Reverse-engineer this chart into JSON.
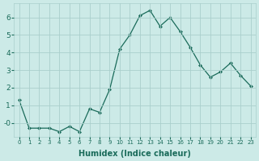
{
  "title": "",
  "xlabel": "Humidex (Indice chaleur)",
  "x": [
    0,
    1,
    2,
    3,
    4,
    5,
    6,
    7,
    8,
    9,
    10,
    11,
    12,
    13,
    14,
    15,
    16,
    17,
    18,
    19,
    20,
    21,
    22,
    23
  ],
  "y": [
    1.3,
    -0.3,
    -0.3,
    -0.3,
    -0.5,
    -0.2,
    -0.5,
    0.8,
    0.6,
    1.9,
    4.2,
    5.0,
    6.1,
    6.4,
    5.5,
    6.0,
    5.2,
    4.3,
    3.3,
    2.6,
    2.9,
    3.4,
    2.7,
    2.1
  ],
  "line_color": "#1a6b5a",
  "marker": "D",
  "marker_size": 2.0,
  "bg_color": "#cceae7",
  "grid_color": "#aacfcc",
  "tick_label_color": "#1a6b5a",
  "xlabel_color": "#1a6b5a",
  "ylim": [
    -0.8,
    6.8
  ],
  "xlim": [
    -0.5,
    23.5
  ],
  "yticks": [
    6,
    5,
    4,
    3,
    2,
    1,
    0
  ],
  "ytick_labels": [
    "6",
    "5",
    "4",
    "3",
    "2",
    "1",
    "-0"
  ]
}
